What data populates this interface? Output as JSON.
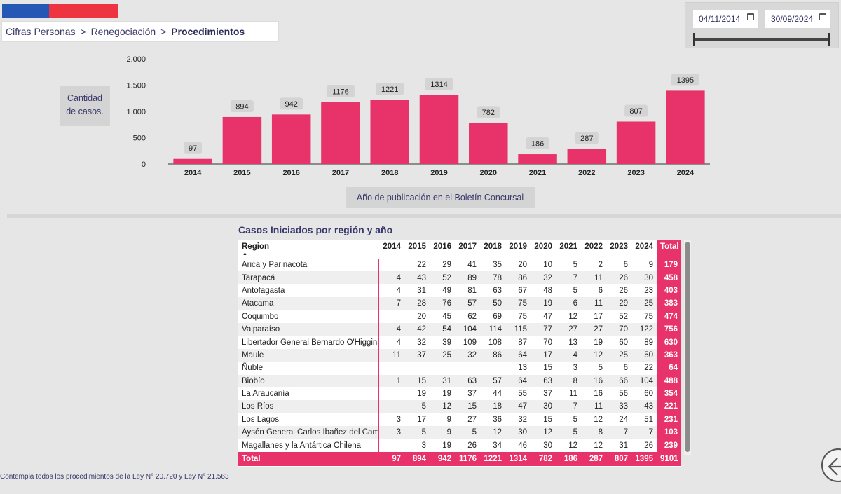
{
  "breadcrumb": {
    "item1": "Cifras Personas",
    "item2": "Renegociación",
    "current": "Procedimientos",
    "separator": ">"
  },
  "date_filter": {
    "start": "04/11/2014",
    "end": "30/09/2024"
  },
  "colors": {
    "bar": "#e8336a",
    "accent_blue": "#2558b5",
    "accent_red": "#ee3440",
    "label_text": "#37376b"
  },
  "chart_data": {
    "type": "bar",
    "categories": [
      "2014",
      "2015",
      "2016",
      "2017",
      "2018",
      "2019",
      "2020",
      "2021",
      "2022",
      "2023",
      "2024"
    ],
    "values": [
      97,
      894,
      942,
      1176,
      1221,
      1314,
      782,
      186,
      287,
      807,
      1395
    ],
    "ylabel": "Cantidad de casos.",
    "xlabel": "Año de publicación en el Boletín Concursal",
    "ylim": [
      0,
      2000
    ],
    "yticks": [
      0,
      500,
      1000,
      1500,
      2000
    ],
    "ytick_labels": [
      "0",
      "500",
      "1.000",
      "1.500",
      "2.000"
    ]
  },
  "ylabel_lines": [
    "Cantidad",
    "de casos."
  ],
  "table": {
    "title": "Casos Iniciados por región y año",
    "region_header": "Region",
    "years": [
      "2014",
      "2015",
      "2016",
      "2017",
      "2018",
      "2019",
      "2020",
      "2021",
      "2022",
      "2023",
      "2024"
    ],
    "total_header": "Total",
    "rows": [
      {
        "region": "Arica y Parinacota",
        "values": [
          "",
          "22",
          "29",
          "41",
          "35",
          "20",
          "10",
          "5",
          "2",
          "6",
          "9"
        ],
        "total": "179"
      },
      {
        "region": "Tarapacá",
        "values": [
          "4",
          "43",
          "52",
          "89",
          "78",
          "86",
          "32",
          "7",
          "11",
          "26",
          "30"
        ],
        "total": "458"
      },
      {
        "region": "Antofagasta",
        "values": [
          "4",
          "31",
          "49",
          "81",
          "63",
          "67",
          "48",
          "5",
          "6",
          "26",
          "23"
        ],
        "total": "403"
      },
      {
        "region": "Atacama",
        "values": [
          "7",
          "28",
          "76",
          "57",
          "50",
          "75",
          "19",
          "6",
          "11",
          "29",
          "25"
        ],
        "total": "383"
      },
      {
        "region": "Coquimbo",
        "values": [
          "",
          "20",
          "45",
          "62",
          "69",
          "75",
          "47",
          "12",
          "17",
          "52",
          "75"
        ],
        "total": "474"
      },
      {
        "region": "Valparaíso",
        "values": [
          "4",
          "42",
          "54",
          "104",
          "114",
          "115",
          "77",
          "27",
          "27",
          "70",
          "122"
        ],
        "total": "756"
      },
      {
        "region": "Libertador General Bernardo O'Higgins",
        "values": [
          "4",
          "32",
          "39",
          "109",
          "108",
          "87",
          "70",
          "13",
          "19",
          "60",
          "89"
        ],
        "total": "630"
      },
      {
        "region": "Maule",
        "values": [
          "11",
          "37",
          "25",
          "32",
          "86",
          "64",
          "17",
          "4",
          "12",
          "25",
          "50"
        ],
        "total": "363"
      },
      {
        "region": "Ñuble",
        "values": [
          "",
          "",
          "",
          "",
          "",
          "13",
          "15",
          "3",
          "5",
          "6",
          "22"
        ],
        "total": "64"
      },
      {
        "region": "Biobío",
        "values": [
          "1",
          "15",
          "31",
          "63",
          "57",
          "64",
          "63",
          "8",
          "16",
          "66",
          "104"
        ],
        "total": "488"
      },
      {
        "region": "La Araucanía",
        "values": [
          "",
          "19",
          "19",
          "37",
          "44",
          "55",
          "37",
          "11",
          "16",
          "56",
          "60"
        ],
        "total": "354"
      },
      {
        "region": "Los Ríos",
        "values": [
          "",
          "5",
          "12",
          "15",
          "18",
          "47",
          "30",
          "7",
          "11",
          "33",
          "43"
        ],
        "total": "221"
      },
      {
        "region": "Los Lagos",
        "values": [
          "3",
          "17",
          "9",
          "27",
          "36",
          "32",
          "15",
          "5",
          "12",
          "24",
          "51"
        ],
        "total": "231"
      },
      {
        "region": "Aysén General Carlos Ibañez del Campo",
        "values": [
          "3",
          "5",
          "9",
          "5",
          "12",
          "30",
          "12",
          "5",
          "8",
          "7",
          "7"
        ],
        "total": "103"
      },
      {
        "region": "Magallanes y la Antártica Chilena",
        "values": [
          "",
          "3",
          "19",
          "26",
          "34",
          "46",
          "30",
          "12",
          "12",
          "31",
          "26"
        ],
        "total": "239"
      }
    ],
    "footer": {
      "label": "Total",
      "values": [
        "97",
        "894",
        "942",
        "1176",
        "1221",
        "1314",
        "782",
        "186",
        "287",
        "807",
        "1395"
      ],
      "total": "9101"
    }
  },
  "footnote": "Contempla todos los procedimientos  de la Ley N° 20.720 y Ley N° 21.563"
}
